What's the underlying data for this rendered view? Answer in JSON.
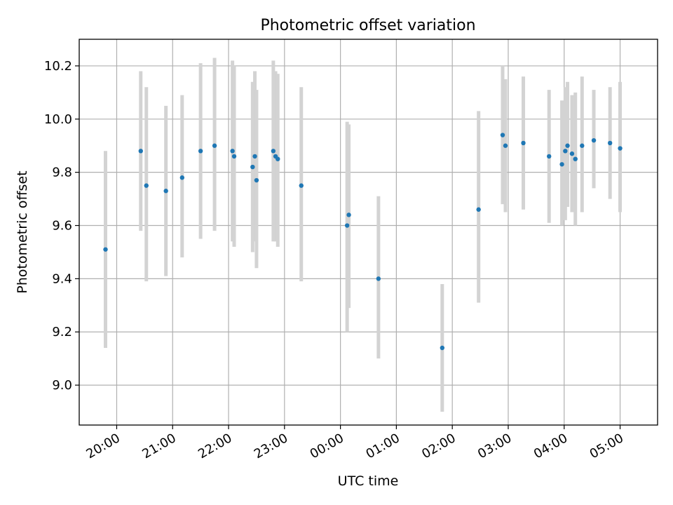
{
  "chart_data": {
    "type": "scatter",
    "title": "Photometric offset variation",
    "xlabel": "UTC time",
    "ylabel": "Photometric offset",
    "grid": true,
    "x_unit": "hours (UTC, continuing past midnight)",
    "xlim": [
      19.33,
      29.67
    ],
    "ylim": [
      8.85,
      10.3
    ],
    "x_ticks": [
      {
        "value": 20,
        "label": "20:00"
      },
      {
        "value": 21,
        "label": "21:00"
      },
      {
        "value": 22,
        "label": "22:00"
      },
      {
        "value": 23,
        "label": "23:00"
      },
      {
        "value": 24,
        "label": "00:00"
      },
      {
        "value": 25,
        "label": "01:00"
      },
      {
        "value": 26,
        "label": "02:00"
      },
      {
        "value": 27,
        "label": "03:00"
      },
      {
        "value": 28,
        "label": "04:00"
      },
      {
        "value": 29,
        "label": "05:00"
      }
    ],
    "y_ticks": [
      {
        "value": 9.0,
        "label": "9.0"
      },
      {
        "value": 9.2,
        "label": "9.2"
      },
      {
        "value": 9.4,
        "label": "9.4"
      },
      {
        "value": 9.6,
        "label": "9.6"
      },
      {
        "value": 9.8,
        "label": "9.8"
      },
      {
        "value": 10.0,
        "label": "10.0"
      },
      {
        "value": 10.2,
        "label": "10.2"
      }
    ],
    "point_color": "#1f77b4",
    "errorbar_color": "#d3d3d3",
    "points": [
      {
        "x": 19.8,
        "y": 9.51,
        "lo": 9.14,
        "hi": 9.88
      },
      {
        "x": 20.43,
        "y": 9.88,
        "lo": 9.58,
        "hi": 10.18
      },
      {
        "x": 20.53,
        "y": 9.75,
        "lo": 9.39,
        "hi": 10.12
      },
      {
        "x": 20.88,
        "y": 9.73,
        "lo": 9.41,
        "hi": 10.05
      },
      {
        "x": 21.17,
        "y": 9.78,
        "lo": 9.48,
        "hi": 10.09
      },
      {
        "x": 21.5,
        "y": 9.88,
        "lo": 9.55,
        "hi": 10.21
      },
      {
        "x": 21.75,
        "y": 9.9,
        "lo": 9.58,
        "hi": 10.23
      },
      {
        "x": 22.07,
        "y": 9.88,
        "lo": 9.54,
        "hi": 10.22
      },
      {
        "x": 22.1,
        "y": 9.86,
        "lo": 9.52,
        "hi": 10.2
      },
      {
        "x": 22.43,
        "y": 9.82,
        "lo": 9.5,
        "hi": 10.14
      },
      {
        "x": 22.47,
        "y": 9.86,
        "lo": 9.54,
        "hi": 10.18
      },
      {
        "x": 22.5,
        "y": 9.77,
        "lo": 9.44,
        "hi": 10.11
      },
      {
        "x": 22.8,
        "y": 9.88,
        "lo": 9.54,
        "hi": 10.22
      },
      {
        "x": 22.84,
        "y": 9.86,
        "lo": 9.54,
        "hi": 10.18
      },
      {
        "x": 22.88,
        "y": 9.85,
        "lo": 9.52,
        "hi": 10.17
      },
      {
        "x": 23.3,
        "y": 9.75,
        "lo": 9.39,
        "hi": 10.12
      },
      {
        "x": 24.12,
        "y": 9.6,
        "lo": 9.2,
        "hi": 9.99
      },
      {
        "x": 24.15,
        "y": 9.64,
        "lo": 9.29,
        "hi": 9.98
      },
      {
        "x": 24.68,
        "y": 9.4,
        "lo": 9.1,
        "hi": 9.71
      },
      {
        "x": 25.82,
        "y": 9.14,
        "lo": 8.9,
        "hi": 9.38
      },
      {
        "x": 26.47,
        "y": 9.66,
        "lo": 9.31,
        "hi": 10.03
      },
      {
        "x": 26.9,
        "y": 9.94,
        "lo": 9.68,
        "hi": 10.2
      },
      {
        "x": 26.95,
        "y": 9.9,
        "lo": 9.65,
        "hi": 10.15
      },
      {
        "x": 27.27,
        "y": 9.91,
        "lo": 9.66,
        "hi": 10.16
      },
      {
        "x": 27.73,
        "y": 9.86,
        "lo": 9.61,
        "hi": 10.11
      },
      {
        "x": 27.96,
        "y": 9.83,
        "lo": 9.6,
        "hi": 10.07
      },
      {
        "x": 28.02,
        "y": 9.88,
        "lo": 9.62,
        "hi": 10.12
      },
      {
        "x": 28.06,
        "y": 9.9,
        "lo": 9.67,
        "hi": 10.14
      },
      {
        "x": 28.14,
        "y": 9.87,
        "lo": 9.65,
        "hi": 10.09
      },
      {
        "x": 28.2,
        "y": 9.85,
        "lo": 9.6,
        "hi": 10.1
      },
      {
        "x": 28.32,
        "y": 9.9,
        "lo": 9.65,
        "hi": 10.16
      },
      {
        "x": 28.53,
        "y": 9.92,
        "lo": 9.74,
        "hi": 10.11
      },
      {
        "x": 28.82,
        "y": 9.91,
        "lo": 9.7,
        "hi": 10.12
      },
      {
        "x": 29.0,
        "y": 9.89,
        "lo": 9.65,
        "hi": 10.14
      }
    ]
  }
}
